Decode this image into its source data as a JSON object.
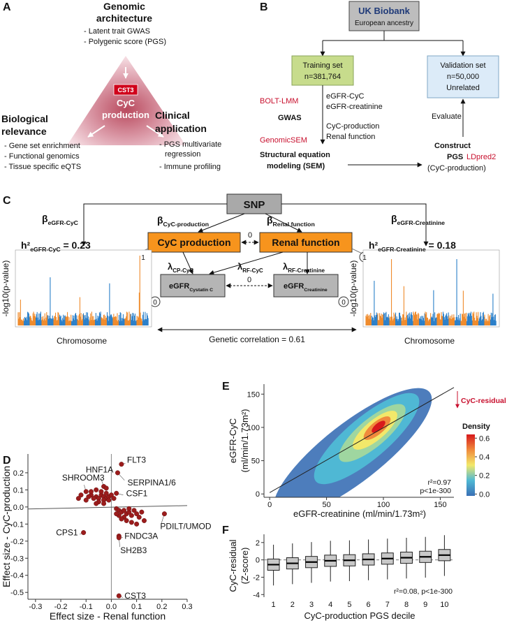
{
  "panel_labels": [
    "A",
    "B",
    "C",
    "D",
    "E",
    "F"
  ],
  "panel_a": {
    "top": {
      "title": [
        "Genomic",
        "architecture"
      ],
      "items": [
        "- Latent trait GWAS",
        "- Polygenic score (PGS)"
      ]
    },
    "left": {
      "title": [
        "Biological",
        "relevance"
      ],
      "items": [
        "- Gene set enrichment",
        "- Functional genomics",
        "- Tissue specific eQTS"
      ]
    },
    "right": {
      "title": [
        "Clinical",
        "application"
      ],
      "items": [
        "- PGS multivariate",
        "regression",
        "- Immune profiling"
      ]
    },
    "center": {
      "gene": "CST3",
      "label": [
        "CyC",
        "production"
      ]
    }
  },
  "panel_b": {
    "source": {
      "title": "UK Biobank",
      "subtitle": "European ancestry"
    },
    "training": [
      "Training set",
      "n=381,764"
    ],
    "validation": [
      "Validation set",
      "n=50,000",
      "Unrelated"
    ],
    "traits": [
      "eGFR-CyC",
      "eGFR-creatinine"
    ],
    "tool1": "BOLT-LMM",
    "step1": "GWAS",
    "tool2": "GenomicSEM",
    "factors": [
      "CyC-production",
      "Renal function"
    ],
    "step2": [
      "Structural equation",
      "modeling (SEM)"
    ],
    "step3": [
      "Construct",
      "PGS"
    ],
    "tool3": "LDpred2",
    "step3_sub": "(CyC-production)",
    "evaluate": "Evaluate"
  },
  "panel_c": {
    "snp": "SNP",
    "factors": [
      "CyC production",
      "Renal function"
    ],
    "outcomes": [
      {
        "main": "eGFR",
        "sub": "Cystatin C"
      },
      {
        "main": "eGFR",
        "sub": "Creatinine"
      }
    ],
    "paths": [
      {
        "symbol": "β",
        "sub": "eGFR-CyC"
      },
      {
        "symbol": "β",
        "sub": "CyC-production"
      },
      {
        "symbol": "β",
        "sub": "Renal function"
      },
      {
        "symbol": "β",
        "sub": "eGFR-Creatinine"
      }
    ],
    "loadings": [
      {
        "symbol": "λ",
        "sub": "CP-CyC"
      },
      {
        "symbol": "λ",
        "sub": "RF-CyC"
      },
      {
        "symbol": "λ",
        "sub": "RF-Creatinine"
      }
    ],
    "fixed_correlations": [
      "0",
      "0"
    ],
    "circles": [
      "1",
      "1",
      "0",
      "0"
    ],
    "heritability": [
      {
        "label": "h²",
        "sub": "eGFR-CyC",
        "value": " = 0.23"
      },
      {
        "label": "h²",
        "sub": "eGFR-Creatinine",
        "value": " = 0.18"
      }
    ],
    "plots": [
      {
        "ylabel": "-log10(p-value)",
        "xlabel": "Chromosome"
      },
      {
        "ylabel": "-log10(p-value)",
        "xlabel": "Chromosome"
      }
    ],
    "genetic_correlation": "Genetic correlation = 0.61"
  },
  "chart_data": [
    {
      "type": "scatter",
      "xlabel": "Effect size - Renal function",
      "ylabel": "Effect size - CyC-production",
      "color": "#9b1c1c",
      "xlim": [
        -0.33,
        0.3
      ],
      "ylim": [
        -0.54,
        0.31
      ],
      "xticks": [
        -0.3,
        -0.2,
        -0.1,
        {
          "value": 0,
          "label": "0.0"
        },
        0.1,
        0.2,
        0.3
      ],
      "yticks": [
        0.2,
        0.1,
        {
          "value": 0,
          "label": "0.0"
        },
        -0.1,
        -0.2,
        -0.3,
        -0.4,
        -0.5
      ],
      "fit_line": {
        "x": [
          -0.33,
          0.3
        ],
        "y": [
          -0.012,
          0.008
        ]
      },
      "x": [
        0.04,
        0.025,
        -0.03,
        -0.1,
        0.02,
        -0.11,
        0.21,
        0.03,
        0.03,
        0.03,
        -0.08,
        -0.06,
        -0.05,
        -0.04,
        -0.03,
        -0.02,
        -0.01,
        -0.03,
        -0.05,
        -0.07,
        -0.09,
        -0.1,
        -0.04,
        -0.06,
        -0.02,
        -0.01,
        0.0,
        -0.08,
        -0.12,
        -0.13,
        -0.03,
        -0.06,
        0.01,
        -0.02,
        0.02,
        0.03,
        0.04,
        0.05,
        0.06,
        0.07,
        0.08,
        0.03,
        0.05,
        0.09,
        0.1,
        0.11,
        0.12,
        0.06,
        0.08,
        0.04,
        0.13,
        0.02,
        0.07,
        0.1
      ],
      "values": [
        0.25,
        0.2,
        0.12,
        0.09,
        0.08,
        -0.15,
        -0.04,
        -0.17,
        -0.18,
        -0.52,
        0.07,
        0.06,
        0.05,
        0.07,
        0.06,
        0.05,
        0.06,
        0.04,
        0.03,
        0.05,
        0.06,
        0.04,
        0.09,
        0.1,
        0.08,
        0.04,
        0.07,
        0.09,
        0.07,
        0.05,
        0.02,
        0.02,
        0.05,
        0.11,
        -0.01,
        -0.02,
        -0.03,
        -0.02,
        -0.04,
        -0.03,
        -0.05,
        -0.05,
        -0.06,
        -0.02,
        -0.04,
        -0.06,
        -0.03,
        -0.08,
        -0.09,
        -0.07,
        -0.08,
        -0.04,
        -0.01,
        -0.1
      ],
      "labels": [
        "FLT3",
        "SERPINA1/6",
        "HNF1A",
        "SHROOM3",
        "CSF1",
        "CPS1",
        "PDILT/UMOD",
        "FNDC3A",
        "SH2B3",
        "CST3",
        null,
        null,
        null,
        null,
        null,
        null,
        null,
        null,
        null,
        null,
        null,
        null,
        null,
        null,
        null,
        null,
        null,
        null,
        null,
        null,
        null,
        null,
        null,
        null,
        null,
        null,
        null,
        null,
        null,
        null,
        null,
        null,
        null,
        null,
        null,
        null,
        null,
        null,
        null,
        null,
        null,
        null,
        null,
        null
      ]
    },
    {
      "type": "density",
      "xlabel": "eGFR-creatinine (ml/min/1.73m²)",
      "ylabel": [
        "eGFR-CyC",
        "(ml/min/1.73m²)"
      ],
      "xlim": [
        -5,
        162
      ],
      "ylim": [
        -5,
        165
      ],
      "xticks": [
        0,
        50,
        100,
        150
      ],
      "yticks": [
        0,
        50,
        100,
        150
      ],
      "fit_line": {
        "x": [
          0,
          162
        ],
        "y": [
          2,
          160
        ]
      },
      "annotation": "CyC-residual",
      "stats": [
        "r²=0.97",
        "p<1e-300"
      ],
      "colorbar": {
        "title": "Density",
        "lim": [
          -0.02,
          0.64
        ],
        "ticks": [
          {
            "value": 0,
            "label": "0.0"
          },
          0.2,
          0.4,
          0.6
        ],
        "colors": [
          "#3a6fb5",
          "#4fb8d4",
          "#f2e86a",
          "#f08a3c",
          "#d7191c"
        ]
      }
    },
    {
      "type": "box",
      "xlabel": "CyC-production PGS decile",
      "ylabel": [
        "CyC-residual",
        "(Z-score)"
      ],
      "color": "#c8c8c8",
      "ylim": [
        -4.3,
        2.95
      ],
      "yticks": [
        2,
        0,
        -2,
        -4
      ],
      "categories": [
        "1",
        "2",
        "3",
        "4",
        "5",
        "6",
        "7",
        "8",
        "9",
        "10"
      ],
      "median": [
        -0.55,
        -0.4,
        -0.25,
        -0.1,
        -0.05,
        0.05,
        0.15,
        0.25,
        0.35,
        0.55
      ],
      "q1": [
        -1.2,
        -1.05,
        -0.9,
        -0.75,
        -0.7,
        -0.6,
        -0.5,
        -0.4,
        -0.3,
        -0.1
      ],
      "q3": [
        0.1,
        0.25,
        0.4,
        0.55,
        0.6,
        0.7,
        0.8,
        0.9,
        1.0,
        1.2
      ],
      "whisker_low": [
        -2.95,
        -2.8,
        -2.65,
        -2.5,
        -2.45,
        -2.35,
        -2.25,
        -2.15,
        -2.05,
        -1.85
      ],
      "whisker_high": [
        1.75,
        1.9,
        2.05,
        2.2,
        2.25,
        2.35,
        2.45,
        2.55,
        2.65,
        2.85
      ],
      "annotation": "r²=0.08, p<1e-300"
    }
  ]
}
